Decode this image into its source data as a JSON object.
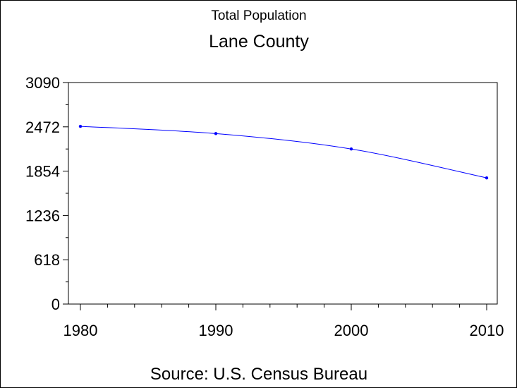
{
  "chart_data": {
    "type": "line",
    "title": "Total Population",
    "subtitle": "Lane County",
    "source": "Source: U.S. Census Bureau",
    "x": [
      1980,
      1990,
      2000,
      2010
    ],
    "x_tick_labels": [
      "1980",
      "1990",
      "2000",
      "2010"
    ],
    "xlim": [
      1980,
      2010
    ],
    "ylim": [
      0,
      3090
    ],
    "y_tick_values": [
      0,
      618,
      1236,
      1854,
      2472,
      3090
    ],
    "y_tick_labels": [
      "0",
      "618",
      "1236",
      "1854",
      "2472",
      "3090"
    ],
    "series": [
      {
        "values": [
          2479,
          2378,
          2163,
          1760
        ],
        "color": "#0000ff"
      }
    ],
    "grid": false,
    "legend": "none"
  }
}
